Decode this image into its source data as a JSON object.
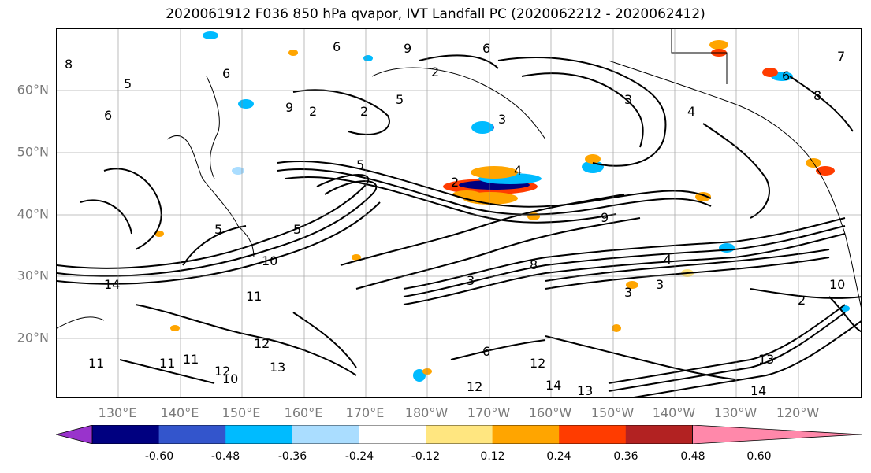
{
  "title": "2020061912 F036 850 hPa qvapor, IVT Landfall PC (2020062212 - 2020062412)",
  "lat_labels": [
    "60°N",
    "50°N",
    "40°N",
    "30°N",
    "20°N"
  ],
  "lon_labels": [
    "130°E",
    "140°E",
    "150°E",
    "160°E",
    "170°E",
    "180°W",
    "170°W",
    "160°W",
    "150°W",
    "140°W",
    "130°W",
    "120°W"
  ],
  "contour_labels": [
    "8",
    "6",
    "5",
    "6",
    "6",
    "9",
    "2",
    "5",
    "2",
    "3",
    "4",
    "7",
    "6",
    "8",
    "2",
    "6",
    "9",
    "5",
    "2",
    "4",
    "5",
    "5",
    "9",
    "10",
    "11",
    "14",
    "11",
    "13",
    "12",
    "11",
    "10",
    "13",
    "12",
    "14",
    "14",
    "13",
    "3",
    "3",
    "4",
    "3",
    "8",
    "10",
    "6",
    "2",
    "12",
    "11",
    "12",
    "3"
  ],
  "colorbar": {
    "tick_labels": [
      "-0.60",
      "-0.48",
      "-0.36",
      "-0.24",
      "-0.12",
      "0.12",
      "0.24",
      "0.36",
      "0.48",
      "0.60"
    ],
    "colors": [
      "#9933cc",
      "#000080",
      "#3355cc",
      "#00bbff",
      "#aaddff",
      "#ffffff",
      "#ffe680",
      "#ffa500",
      "#ff3c00",
      "#b22222",
      "#ff88aa"
    ]
  },
  "accent_colors": {
    "contour": "#000000",
    "grid": "#888888",
    "axis_label": "#7a7a7a"
  }
}
